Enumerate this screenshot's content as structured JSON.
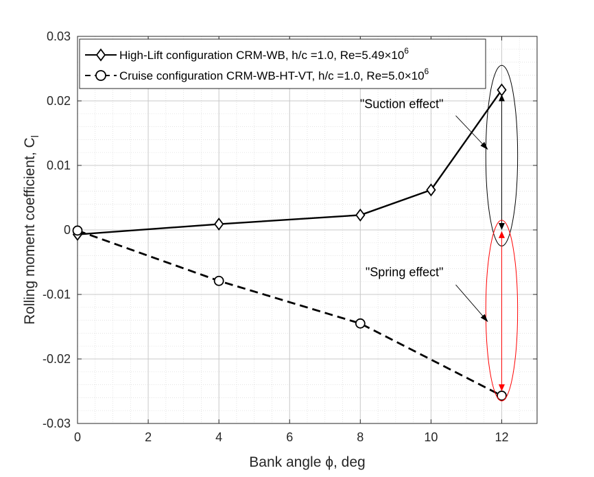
{
  "chart_data": {
    "type": "line",
    "title": "",
    "xlabel": "Bank angle ϕ, deg",
    "ylabel_main": "Rolling moment coefficient, C",
    "ylabel_sub": "l",
    "xlim": [
      0,
      13
    ],
    "ylim": [
      -0.03,
      0.03
    ],
    "xticks": [
      0,
      2,
      4,
      6,
      8,
      10,
      12
    ],
    "xtick_labels": [
      "0",
      "2",
      "4",
      "6",
      "8",
      "10",
      "12"
    ],
    "yticks": [
      -0.03,
      -0.02,
      -0.01,
      0,
      0.01,
      0.02,
      0.03
    ],
    "ytick_labels": [
      "-0.03",
      "-0.02",
      "-0.01",
      "0",
      "0.01",
      "0.02",
      "0.03"
    ],
    "grid": "major and minor",
    "legend_position": "top",
    "series": [
      {
        "name": "High-Lift configuration  CRM-WB, h/c =1.0, Re=5.49×10",
        "superscript": "6",
        "marker": "diamond",
        "linestyle": "solid",
        "color": "#000000",
        "x": [
          0,
          4,
          8,
          10,
          12
        ],
        "y": [
          -0.0007,
          0.0009,
          0.0023,
          0.0062,
          0.0217
        ]
      },
      {
        "name": "Cruise configuration CRM-WB-HT-VT, h/c =1.0, Re=5.0×10",
        "superscript": "6",
        "marker": "circle",
        "linestyle": "dashed",
        "color": "#000000",
        "x": [
          0,
          4,
          8,
          12
        ],
        "y": [
          -0.0001,
          -0.0079,
          -0.0145,
          -0.0257
        ]
      }
    ],
    "annotations": [
      {
        "text": "\"Suction effect\"",
        "arrow_from": [
          10.7,
          0.0177
        ],
        "arrow_to": [
          11.6,
          0.0125
        ],
        "color": "#000000",
        "ellipse": {
          "center": [
            12,
            0.0115
          ],
          "rx": 0.45,
          "ry": 0.014,
          "color": "#000000"
        },
        "double_arrow": {
          "x": 12,
          "y1": 0.0209,
          "y2": 0.0001,
          "color": "#000000"
        }
      },
      {
        "text": "\"Spring effect\"",
        "arrow_from": [
          10.7,
          -0.0085
        ],
        "arrow_to": [
          11.6,
          -0.0142
        ],
        "color": "#000000",
        "ellipse": {
          "center": [
            12,
            -0.0125
          ],
          "rx": 0.45,
          "ry": 0.014,
          "color": "#ff0000"
        },
        "double_arrow": {
          "x": 12,
          "y1": -0.0003,
          "y2": -0.0249,
          "color": "#ff0000"
        }
      }
    ],
    "annotation_text_anchor": [
      {
        "x": 10.35,
        "y": 0.0189
      },
      {
        "x": 10.35,
        "y": -0.0072
      }
    ]
  }
}
